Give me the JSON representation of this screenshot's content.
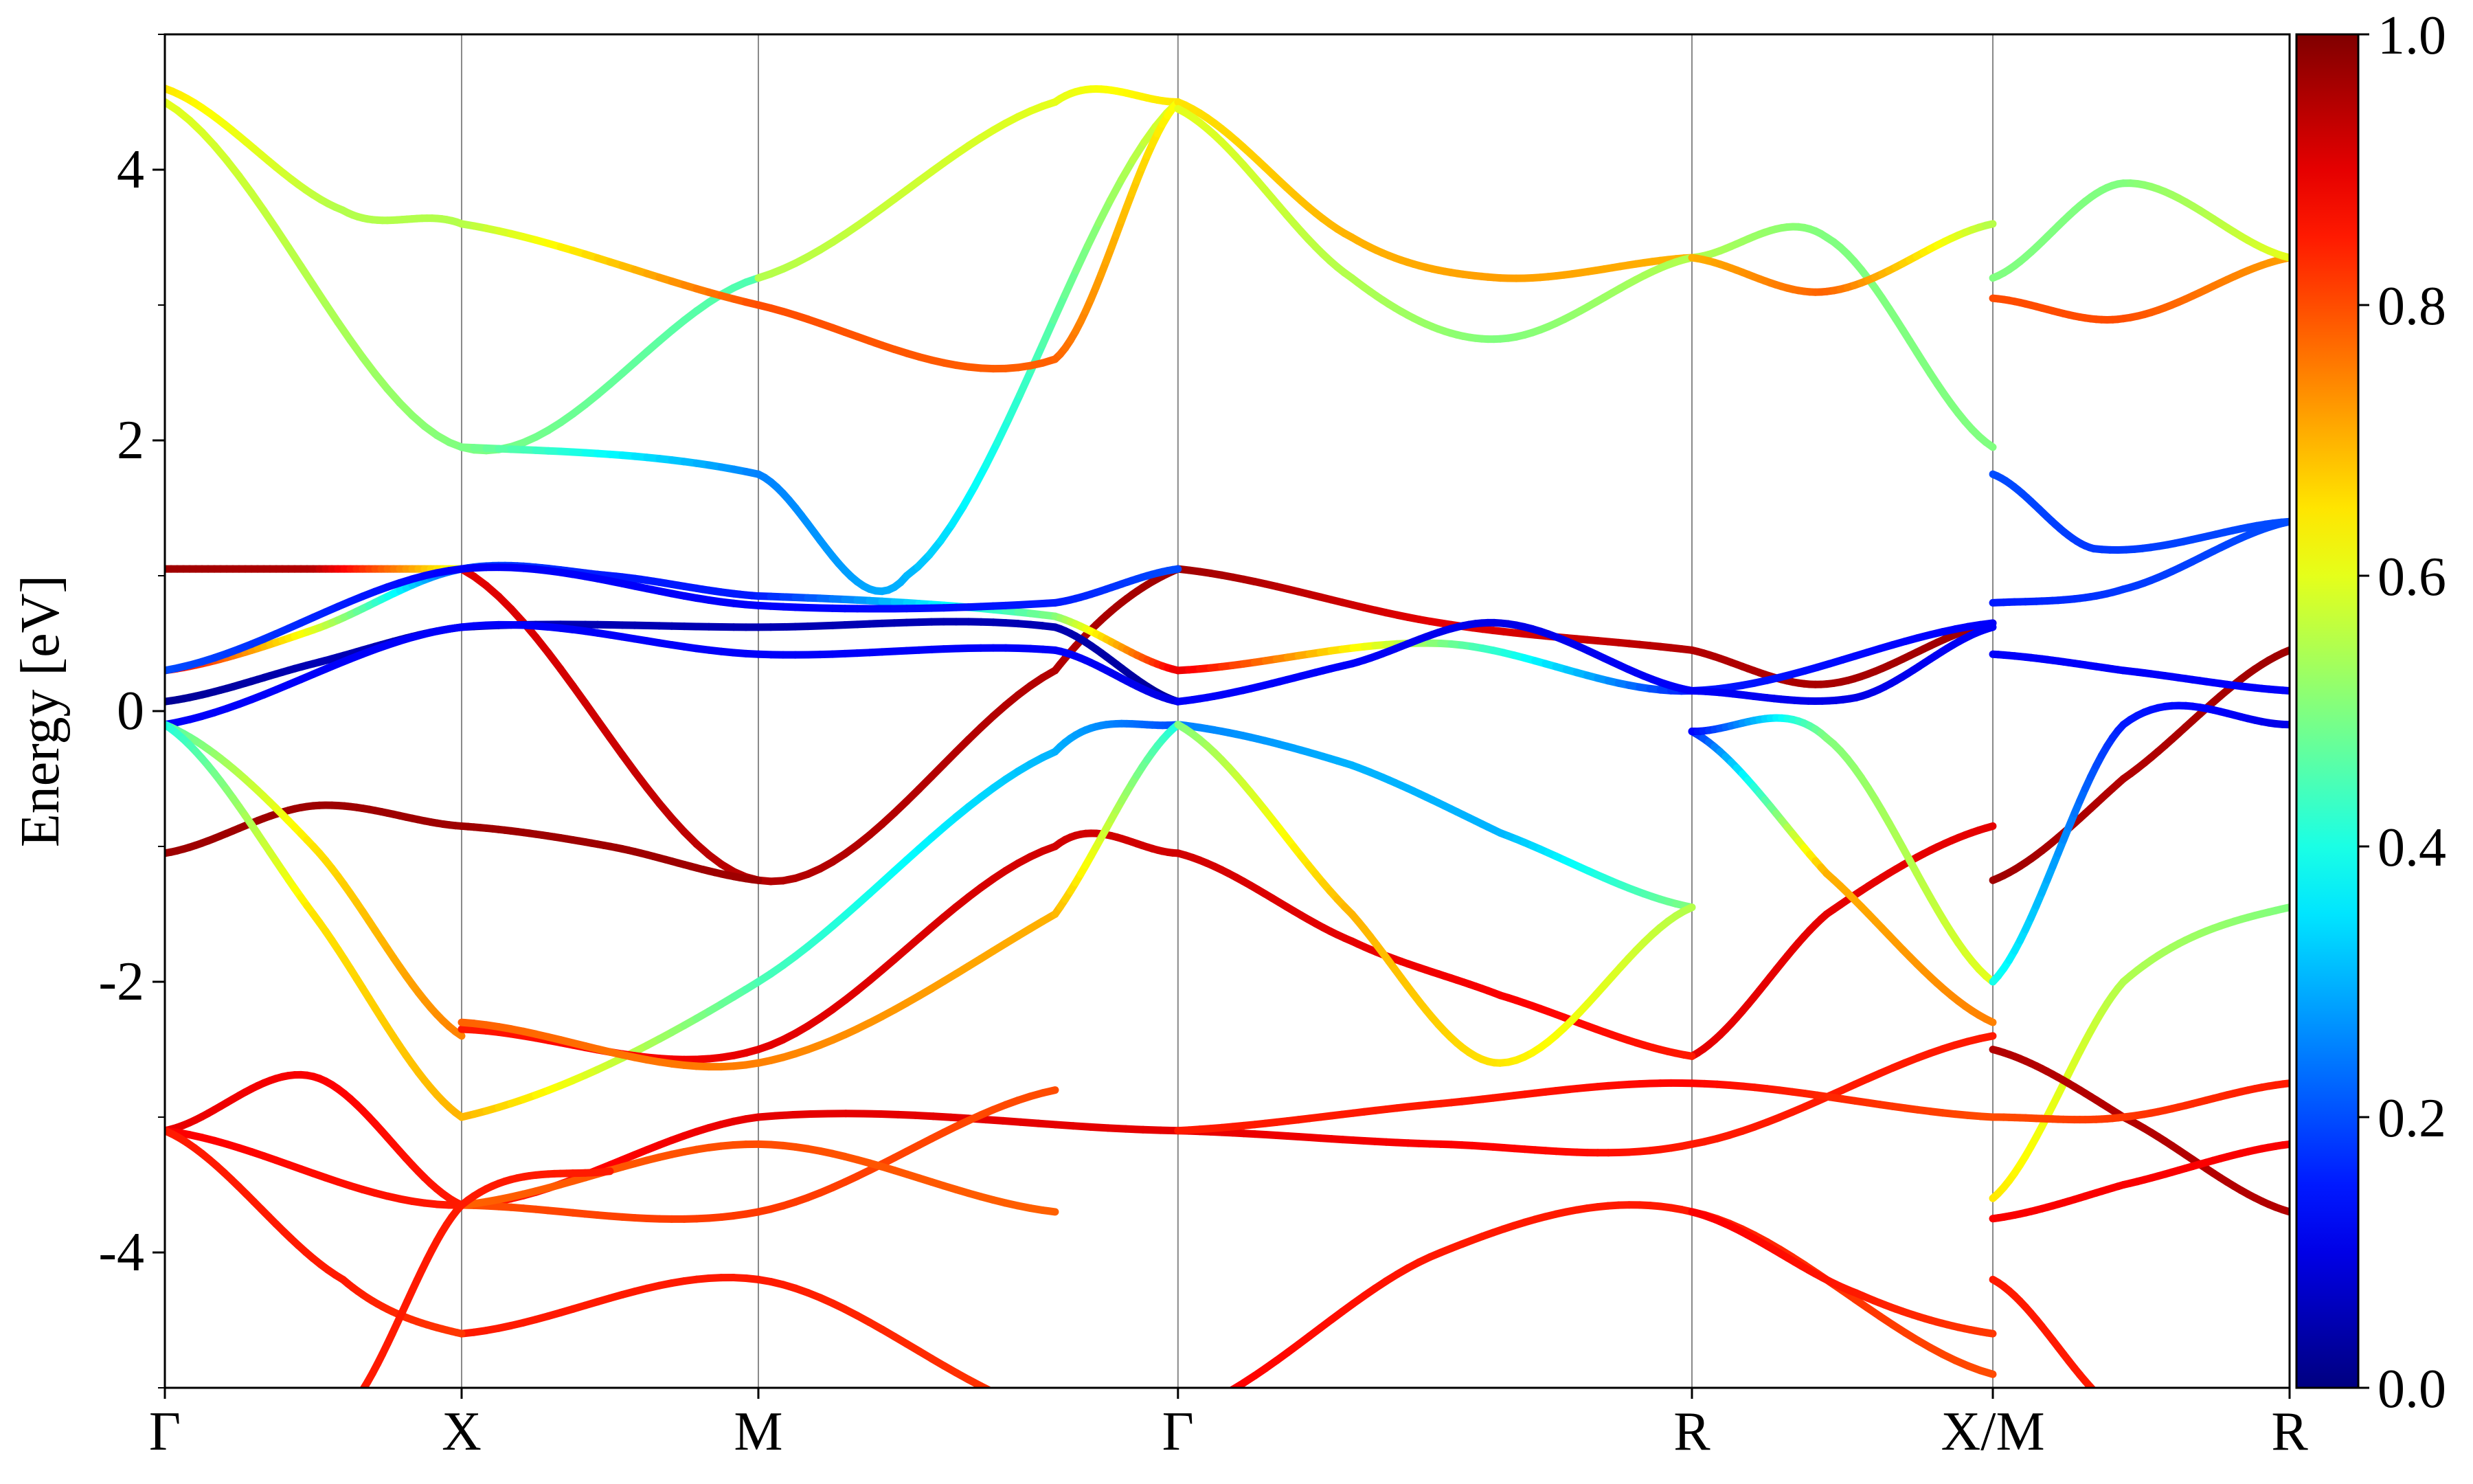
{
  "chart_data": {
    "type": "line",
    "subtype": "projected-band-structure",
    "ylabel": "Energy [eV]",
    "xlabel": "",
    "ylim": [
      -5,
      5
    ],
    "yticks_labeled": [
      {
        "value": -4,
        "label": "-4"
      },
      {
        "value": -2,
        "label": "-2"
      },
      {
        "value": 0,
        "label": "0"
      },
      {
        "value": 2,
        "label": "2"
      },
      {
        "value": 4,
        "label": "4"
      }
    ],
    "yticks_minor": [
      -5,
      -3,
      -1,
      1,
      3,
      5
    ],
    "kpath": [
      {
        "label": "Γ",
        "pos": 0.0
      },
      {
        "label": "X",
        "pos": 1.0
      },
      {
        "label": "M",
        "pos": 2.0
      },
      {
        "label": "Γ",
        "pos": 3.414
      },
      {
        "label": "R",
        "pos": 5.146
      },
      {
        "label": "X/M",
        "pos": 6.16
      },
      {
        "label": "R",
        "pos": 7.16
      }
    ],
    "xlim": [
      0,
      7.16
    ],
    "colorbar": {
      "colormap": "jet",
      "range": [
        0,
        1
      ],
      "ticks": [
        {
          "value": 0.0,
          "label": "0.0"
        },
        {
          "value": 0.2,
          "label": "0.2"
        },
        {
          "value": 0.4,
          "label": "0.4"
        },
        {
          "value": 0.6,
          "label": "0.6"
        },
        {
          "value": 0.8,
          "label": "0.8"
        },
        {
          "value": 1.0,
          "label": "1.0"
        }
      ]
    },
    "bands": [
      {
        "k": [
          0,
          0.5,
          1.0
        ],
        "E": [
          1.05,
          1.05,
          1.05
        ],
        "w": [
          0.97,
          0.95,
          0.6
        ]
      },
      {
        "k": [
          1.0,
          2.0,
          3.0,
          3.414
        ],
        "E": [
          1.05,
          -1.25,
          0.3,
          1.05
        ],
        "w": [
          0.9,
          0.95,
          0.95,
          0.97
        ]
      },
      {
        "k": [
          3.414,
          4.3,
          5.146,
          5.6,
          6.16
        ],
        "E": [
          1.05,
          0.65,
          0.45,
          0.2,
          0.65
        ],
        "w": [
          0.97,
          0.9,
          0.95,
          0.96,
          0.97
        ]
      },
      {
        "k": [
          0,
          0.5,
          1.0
        ],
        "E": [
          -1.05,
          -0.7,
          -0.85
        ],
        "w": [
          0.97,
          0.97,
          0.97
        ]
      },
      {
        "k": [
          1.0,
          1.5,
          2.0
        ],
        "E": [
          -0.85,
          -1.0,
          -1.25
        ],
        "w": [
          0.97,
          0.97,
          0.97
        ]
      },
      {
        "k": [
          6.16,
          6.6,
          7.16
        ],
        "E": [
          -1.25,
          -0.5,
          0.45
        ],
        "w": [
          0.97,
          0.95,
          0.97
        ]
      },
      {
        "k": [
          5.146,
          5.6,
          6.16
        ],
        "E": [
          -2.55,
          -1.5,
          -0.85
        ],
        "w": [
          0.9,
          0.9,
          0.9
        ]
      },
      {
        "k": [
          0,
          0.5,
          1.0,
          1.5,
          2.0
        ],
        "E": [
          0.3,
          0.6,
          1.05,
          1.0,
          0.85
        ],
        "w": [
          0.9,
          0.6,
          0.2,
          0.15,
          0.15
        ]
      },
      {
        "k": [
          2.0,
          3.0,
          3.414
        ],
        "E": [
          0.85,
          0.7,
          0.3
        ],
        "w": [
          0.15,
          0.5,
          0.9
        ]
      },
      {
        "k": [
          3.414,
          4.3,
          5.146,
          6.16
        ],
        "E": [
          0.3,
          0.5,
          0.15,
          0.65
        ],
        "w": [
          0.9,
          0.5,
          0.15,
          0.12
        ]
      },
      {
        "k": [
          0,
          0.5,
          1.0,
          2.0,
          3.0,
          3.414
        ],
        "E": [
          0.07,
          0.35,
          0.62,
          0.62,
          0.62,
          0.07
        ],
        "w": [
          0.02,
          0.05,
          0.05,
          0.05,
          0.05,
          0.02
        ]
      },
      {
        "k": [
          0,
          1.0,
          2.0,
          3.0,
          3.414
        ],
        "E": [
          -0.1,
          0.62,
          0.42,
          0.45,
          0.07
        ],
        "w": [
          0.12,
          0.12,
          0.12,
          0.12,
          0.1
        ]
      },
      {
        "k": [
          0,
          1.0,
          2.0,
          3.0,
          3.414
        ],
        "E": [
          0.3,
          1.05,
          0.78,
          0.8,
          1.05
        ],
        "w": [
          0.2,
          0.12,
          0.12,
          0.15,
          0.2
        ]
      },
      {
        "k": [
          3.414,
          4.0,
          4.5,
          5.146
        ],
        "E": [
          0.07,
          0.35,
          0.65,
          0.15
        ],
        "w": [
          0.12,
          0.12,
          0.1,
          0.12
        ]
      },
      {
        "k": [
          5.146,
          5.7,
          6.16
        ],
        "E": [
          0.15,
          0.1,
          0.62
        ],
        "w": [
          0.12,
          0.1,
          0.12
        ]
      },
      {
        "k": [
          6.16,
          6.6,
          7.16
        ],
        "E": [
          0.42,
          0.3,
          0.15
        ],
        "w": [
          0.12,
          0.12,
          0.12
        ]
      },
      {
        "k": [
          6.16,
          6.6,
          7.16
        ],
        "E": [
          0.8,
          0.9,
          1.4
        ],
        "w": [
          0.15,
          0.18,
          0.2
        ]
      },
      {
        "k": [
          0,
          1.0,
          2.0
        ],
        "E": [
          4.5,
          1.95,
          3.2
        ],
        "w": [
          0.6,
          0.5,
          0.45
        ]
      },
      {
        "k": [
          2.0,
          3.0,
          3.414
        ],
        "E": [
          3.2,
          4.5,
          4.5
        ],
        "w": [
          0.55,
          0.6,
          0.65
        ]
      },
      {
        "k": [
          1.0,
          2.0,
          2.5,
          3.414
        ],
        "E": [
          1.95,
          1.75,
          1.0,
          4.5
        ],
        "w": [
          0.5,
          0.25,
          0.3,
          0.6
        ]
      },
      {
        "k": [
          0,
          0.6,
          1.0,
          2.0,
          3.0,
          3.414
        ],
        "E": [
          4.6,
          3.7,
          3.6,
          3.0,
          2.6,
          4.5
        ],
        "w": [
          0.65,
          0.55,
          0.55,
          0.8,
          0.78,
          0.62
        ]
      },
      {
        "k": [
          3.414,
          4.0,
          4.5,
          5.146
        ],
        "E": [
          4.5,
          3.5,
          3.2,
          3.35
        ],
        "w": [
          0.65,
          0.7,
          0.72,
          0.7
        ]
      },
      {
        "k": [
          3.414,
          4.0,
          4.5,
          5.146
        ],
        "E": [
          4.45,
          3.2,
          2.75,
          3.35
        ],
        "w": [
          0.6,
          0.55,
          0.5,
          0.55
        ]
      },
      {
        "k": [
          5.146,
          5.6,
          6.16
        ],
        "E": [
          3.35,
          3.5,
          1.95
        ],
        "w": [
          0.55,
          0.5,
          0.5
        ]
      },
      {
        "k": [
          5.146,
          5.6,
          6.16
        ],
        "E": [
          3.35,
          3.1,
          3.6
        ],
        "w": [
          0.7,
          0.78,
          0.55
        ]
      },
      {
        "k": [
          6.16,
          6.6,
          7.16
        ],
        "E": [
          3.05,
          2.9,
          3.35
        ],
        "w": [
          0.8,
          0.8,
          0.72
        ]
      },
      {
        "k": [
          6.16,
          6.6,
          7.16
        ],
        "E": [
          3.2,
          3.9,
          3.35
        ],
        "w": [
          0.5,
          0.5,
          0.6
        ]
      },
      {
        "k": [
          6.16,
          6.5,
          7.16
        ],
        "E": [
          1.75,
          1.2,
          1.4
        ],
        "w": [
          0.2,
          0.18,
          0.2
        ]
      },
      {
        "k": [
          0,
          0.5,
          1.0
        ],
        "E": [
          -3.1,
          -2.7,
          -3.65
        ],
        "w": [
          0.9,
          0.88,
          0.85
        ]
      },
      {
        "k": [
          0,
          0.5,
          1.0
        ],
        "E": [
          -0.1,
          -1.0,
          -2.4
        ],
        "w": [
          0.45,
          0.65,
          0.75
        ]
      },
      {
        "k": [
          0,
          0.5,
          1.0
        ],
        "E": [
          -0.1,
          -1.5,
          -3.0
        ],
        "w": [
          0.4,
          0.65,
          0.7
        ]
      },
      {
        "k": [
          1.0,
          2.0,
          3.0,
          3.414
        ],
        "E": [
          -3.0,
          -2.0,
          -0.3,
          -0.1
        ],
        "w": [
          0.7,
          0.45,
          0.3,
          0.2
        ]
      },
      {
        "k": [
          1.0,
          2.0,
          3.0,
          3.414
        ],
        "E": [
          -2.35,
          -2.5,
          -1.0,
          -1.05
        ],
        "w": [
          0.85,
          0.9,
          0.92,
          0.92
        ]
      },
      {
        "k": [
          1.0,
          2.0,
          3.0,
          3.414
        ],
        "E": [
          -2.3,
          -2.6,
          -1.5,
          -0.1
        ],
        "w": [
          0.78,
          0.75,
          0.7,
          0.4
        ]
      },
      {
        "k": [
          3.414,
          4.0,
          4.5,
          5.146
        ],
        "E": [
          -1.05,
          -1.7,
          -2.1,
          -2.55
        ],
        "w": [
          0.92,
          0.9,
          0.88,
          0.85
        ]
      },
      {
        "k": [
          3.414,
          4.0,
          4.5,
          5.146
        ],
        "E": [
          -0.1,
          -0.4,
          -0.9,
          -1.45
        ],
        "w": [
          0.25,
          0.3,
          0.3,
          0.5
        ]
      },
      {
        "k": [
          3.414,
          4.0,
          4.5,
          5.146
        ],
        "E": [
          -0.1,
          -1.5,
          -2.6,
          -1.45
        ],
        "w": [
          0.5,
          0.7,
          0.65,
          0.55
        ]
      },
      {
        "k": [
          5.146,
          5.6,
          6.16
        ],
        "E": [
          -0.15,
          -1.2,
          -2.3
        ],
        "w": [
          0.15,
          0.7,
          0.75
        ]
      },
      {
        "k": [
          5.146,
          5.6,
          6.16
        ],
        "E": [
          -0.15,
          -0.2,
          -2.0
        ],
        "w": [
          0.12,
          0.5,
          0.6
        ]
      },
      {
        "k": [
          6.16,
          6.6,
          7.16
        ],
        "E": [
          -2.0,
          -0.1,
          -0.1
        ],
        "w": [
          0.4,
          0.15,
          0.1
        ]
      },
      {
        "k": [
          6.16,
          6.6,
          7.16
        ],
        "E": [
          -3.6,
          -2.0,
          -1.45
        ],
        "w": [
          0.65,
          0.55,
          0.5
        ]
      },
      {
        "k": [
          0,
          1.0,
          2.0,
          3.414
        ],
        "E": [
          -3.1,
          -3.65,
          -3.0,
          -3.1
        ],
        "w": [
          0.88,
          0.85,
          0.9,
          0.9
        ]
      },
      {
        "k": [
          3.414,
          4.3,
          5.146,
          6.16
        ],
        "E": [
          -3.1,
          -3.2,
          -3.2,
          -2.4
        ],
        "w": [
          0.9,
          0.88,
          0.85,
          0.85
        ]
      },
      {
        "k": [
          3.414,
          4.3,
          5.146,
          6.16
        ],
        "E": [
          -3.1,
          -2.9,
          -2.75,
          -3.0
        ],
        "w": [
          0.85,
          0.85,
          0.87,
          0.8
        ]
      },
      {
        "k": [
          6.16,
          6.6,
          7.16
        ],
        "E": [
          -2.5,
          -3.0,
          -3.7
        ],
        "w": [
          0.95,
          0.95,
          0.95
        ]
      },
      {
        "k": [
          6.16,
          6.6,
          7.16
        ],
        "E": [
          -3.0,
          -3.0,
          -2.75
        ],
        "w": [
          0.8,
          0.82,
          0.85
        ]
      },
      {
        "k": [
          6.16,
          6.6,
          7.16
        ],
        "E": [
          -3.75,
          -3.5,
          -3.2
        ],
        "w": [
          0.88,
          0.88,
          0.88
        ]
      },
      {
        "k": [
          3.414,
          4.3,
          5.146,
          6.16
        ],
        "E": [
          -5.2,
          -4.0,
          -3.7,
          -4.9
        ],
        "w": [
          0.88,
          0.85,
          0.85,
          0.8
        ]
      },
      {
        "k": [
          1.0,
          2.0,
          3.0
        ],
        "E": [
          -4.6,
          -4.2,
          -5.2
        ],
        "w": [
          0.85,
          0.85,
          0.82
        ]
      },
      {
        "k": [
          1.0,
          2.0,
          3.0
        ],
        "E": [
          -3.65,
          -3.7,
          -2.8
        ],
        "w": [
          0.8,
          0.82,
          0.8
        ]
      },
      {
        "k": [
          1.0,
          2.0,
          3.0
        ],
        "E": [
          -3.65,
          -3.2,
          -3.7
        ],
        "w": [
          0.78,
          0.8,
          0.78
        ]
      },
      {
        "k": [
          0,
          0.6,
          1.0
        ],
        "E": [
          -3.1,
          -4.2,
          -4.6
        ],
        "w": [
          0.85,
          0.85,
          0.82
        ]
      },
      {
        "k": [
          0.6,
          1.0,
          1.5
        ],
        "E": [
          -5.2,
          -3.65,
          -3.4
        ],
        "w": [
          0.85,
          0.85,
          0.85
        ]
      },
      {
        "k": [
          5.146,
          5.7,
          6.16
        ],
        "E": [
          -3.7,
          -4.3,
          -4.6
        ],
        "w": [
          0.88,
          0.85,
          0.82
        ]
      },
      {
        "k": [
          6.16,
          6.6,
          7.16
        ],
        "E": [
          -4.2,
          -5.2,
          -5.2
        ],
        "w": [
          0.85,
          0.85,
          0.85
        ]
      }
    ]
  }
}
